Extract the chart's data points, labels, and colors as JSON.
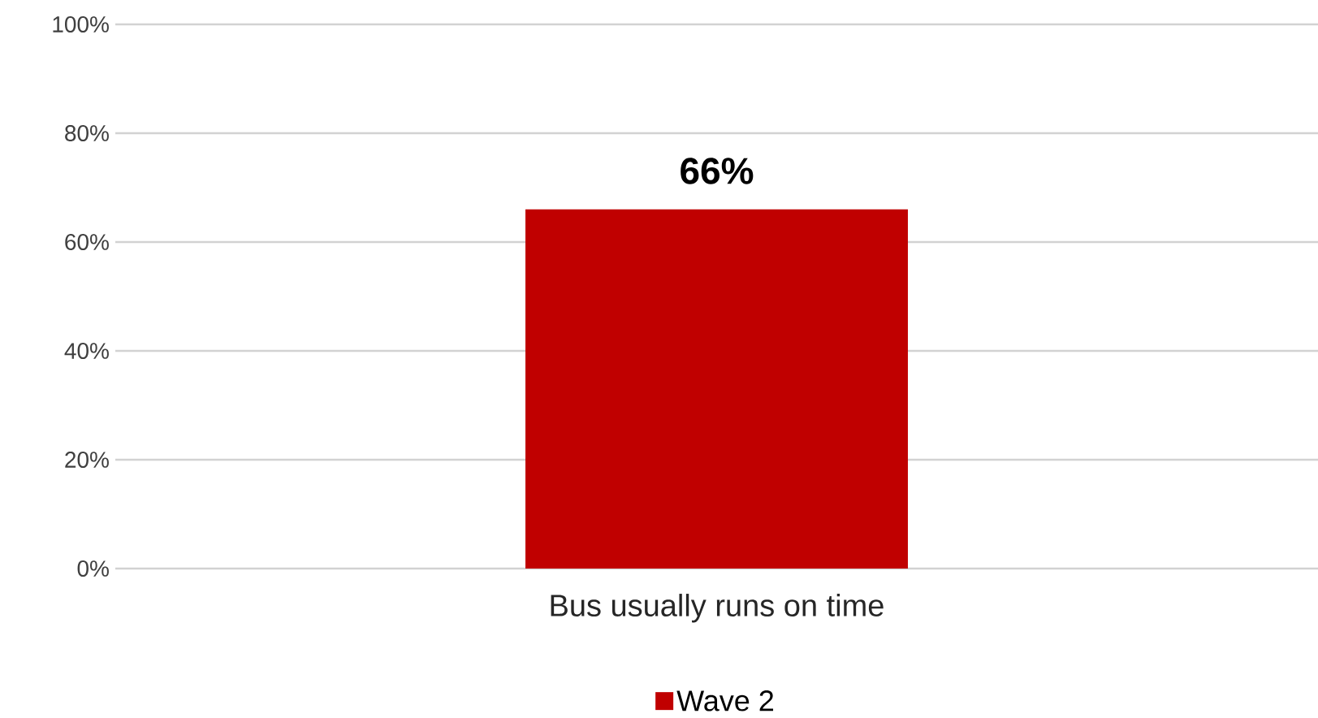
{
  "chart_data": {
    "type": "bar",
    "categories": [
      "Bus usually runs on time"
    ],
    "series": [
      {
        "name": "Wave 2",
        "color": "#c00000",
        "values": [
          66
        ],
        "value_labels": [
          "66%"
        ]
      }
    ],
    "ylim": [
      0,
      100
    ],
    "yticks": [
      {
        "value": 0,
        "label": "0%"
      },
      {
        "value": 20,
        "label": "20%"
      },
      {
        "value": 40,
        "label": "40%"
      },
      {
        "value": 60,
        "label": "60%"
      },
      {
        "value": 80,
        "label": "80%"
      },
      {
        "value": 100,
        "label": "100%"
      }
    ],
    "grid": "y",
    "legend": "bottom"
  }
}
